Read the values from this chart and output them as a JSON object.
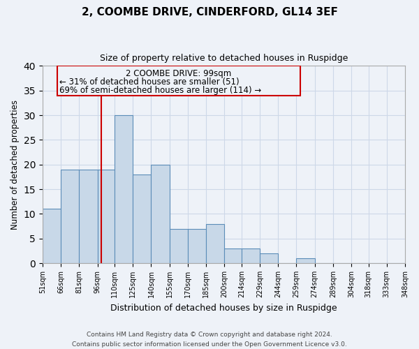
{
  "title": "2, COOMBE DRIVE, CINDERFORD, GL14 3EF",
  "subtitle": "Size of property relative to detached houses in Ruspidge",
  "xlabel": "Distribution of detached houses by size in Ruspidge",
  "ylabel": "Number of detached properties",
  "bar_left_edges": [
    51,
    66,
    81,
    96,
    110,
    125,
    140,
    155,
    170,
    185,
    200,
    214,
    229,
    244,
    259,
    274,
    289,
    304,
    318,
    333
  ],
  "bar_widths": [
    15,
    15,
    15,
    14,
    15,
    15,
    15,
    15,
    15,
    15,
    14,
    15,
    15,
    15,
    15,
    15,
    15,
    14,
    15,
    15
  ],
  "bar_heights": [
    11,
    19,
    19,
    19,
    30,
    18,
    20,
    7,
    7,
    8,
    3,
    3,
    2,
    0,
    1,
    0,
    0,
    0,
    0,
    0
  ],
  "tick_labels": [
    "51sqm",
    "66sqm",
    "81sqm",
    "96sqm",
    "110sqm",
    "125sqm",
    "140sqm",
    "155sqm",
    "170sqm",
    "185sqm",
    "200sqm",
    "214sqm",
    "229sqm",
    "244sqm",
    "259sqm",
    "274sqm",
    "289sqm",
    "304sqm",
    "318sqm",
    "333sqm",
    "348sqm"
  ],
  "bar_color": "#c8d8e8",
  "bar_edge_color": "#5b8db8",
  "vline_x": 99,
  "vline_color": "#cc0000",
  "annot_line1": "2 COOMBE DRIVE: 99sqm",
  "annot_line2": "← 31% of detached houses are smaller (51)",
  "annot_line3": "69% of semi-detached houses are larger (114) →",
  "ylim": [
    0,
    40
  ],
  "yticks": [
    0,
    5,
    10,
    15,
    20,
    25,
    30,
    35,
    40
  ],
  "grid_color": "#cdd8e8",
  "background_color": "#eef2f8",
  "footer_line1": "Contains HM Land Registry data © Crown copyright and database right 2024.",
  "footer_line2": "Contains public sector information licensed under the Open Government Licence v3.0."
}
